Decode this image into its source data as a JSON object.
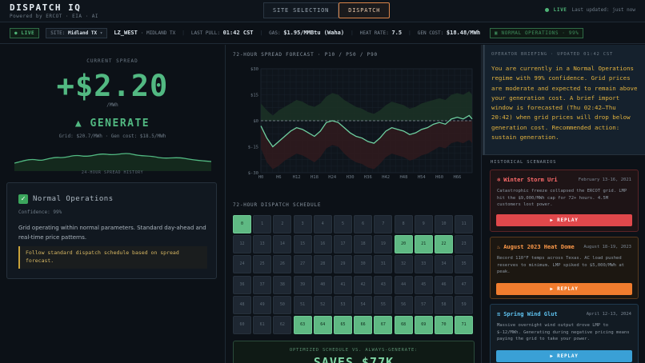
{
  "app": {
    "title": "DISPATCH IQ",
    "subtitle": "Powered by ERCOT · EIA · AI"
  },
  "nav": {
    "tabs": [
      "SITE SELECTION",
      "DISPATCH"
    ],
    "active": "DISPATCH"
  },
  "header_status": {
    "live": "LIVE",
    "last_updated": "Last updated: just now"
  },
  "status_bar": {
    "live_badge": "● LIVE",
    "site_label": "SITE:",
    "site_value": "Midland TX",
    "node": "LZ_WEST",
    "node_location": "· MIDLAND TX",
    "last_pull_label": "LAST PULL:",
    "last_pull_value": "01:42 CST",
    "gas_label": "GAS:",
    "gas_value": "$1.95/MMBtu (Waha)",
    "heat_rate_label": "HEAT RATE:",
    "heat_rate_value": "7.5",
    "gen_cost_label": "GEN COST:",
    "gen_cost_value": "$18.48/MWh",
    "ops_badge": "NORMAL OPERATIONS · 99%"
  },
  "spread": {
    "label": "CURRENT SPREAD",
    "value": "+$2.20",
    "unit": "/MWh",
    "signal": "▲ GENERATE",
    "detail": "Grid: $20.7/MWh · Gen cost: $18.5/MWh",
    "history_label": "24-HOUR SPREAD HISTORY"
  },
  "ops_card": {
    "title": "Normal Operations",
    "confidence": "Confidence: 99%",
    "description": "Grid operating within normal parameters. Standard day-ahead and real-time price patterns.",
    "recommendation": "Follow standard dispatch schedule based on spread forecast."
  },
  "forecast": {
    "title": "72-HOUR SPREAD FORECAST · P10 / P50 / P90",
    "y_ticks": [
      "$30",
      "$15",
      "$0",
      "$-15",
      "$-30"
    ],
    "x_ticks": [
      "H0",
      "H6",
      "H12",
      "H18",
      "H24",
      "H30",
      "H36",
      "H42",
      "H48",
      "H54",
      "H60",
      "H66"
    ]
  },
  "chart_data": {
    "type": "line",
    "xlabel": "",
    "ylabel": "",
    "ylim": [
      -30,
      30
    ],
    "x": [
      0,
      2,
      4,
      6,
      8,
      10,
      12,
      14,
      16,
      18,
      20,
      22,
      24,
      26,
      28,
      30,
      32,
      34,
      36,
      38,
      40,
      42,
      44,
      46,
      48,
      50,
      52,
      54,
      56,
      58,
      60,
      62,
      64,
      66,
      68,
      70,
      71
    ],
    "series": [
      {
        "values": [
          -3,
          -10,
          -15,
          -12,
          -9,
          -6,
          -4,
          -5,
          -7,
          -9,
          -6,
          -1,
          0,
          -1,
          -4,
          -7,
          -9,
          -10,
          -12,
          -13,
          -10,
          -6,
          -4,
          -5,
          -6,
          -8,
          -7,
          -5,
          -4,
          -2,
          -1,
          -2,
          1,
          2,
          1,
          3,
          1
        ]
      },
      {
        "values": [
          10,
          6,
          3,
          6,
          8,
          10,
          12,
          11,
          9,
          8,
          10,
          14,
          16,
          15,
          12,
          10,
          8,
          7,
          5,
          4,
          6,
          9,
          11,
          10,
          9,
          7,
          8,
          10,
          11,
          12,
          13,
          12,
          15,
          16,
          15,
          17,
          15
        ]
      },
      {
        "values": [
          -16,
          -24,
          -28,
          -26,
          -23,
          -21,
          -19,
          -20,
          -22,
          -24,
          -21,
          -16,
          -14,
          -15,
          -19,
          -22,
          -24,
          -25,
          -27,
          -28,
          -25,
          -21,
          -19,
          -20,
          -21,
          -23,
          -22,
          -20,
          -19,
          -17,
          -15,
          -16,
          -13,
          -12,
          -13,
          -11,
          -13
        ]
      }
    ]
  },
  "schedule": {
    "title": "72-HOUR DISPATCH SCHEDULE",
    "hours": [
      0,
      1,
      2,
      3,
      4,
      5,
      6,
      7,
      8,
      9,
      10,
      11,
      12,
      13,
      14,
      15,
      16,
      17,
      18,
      19,
      20,
      21,
      22,
      23,
      24,
      25,
      26,
      27,
      28,
      29,
      30,
      31,
      32,
      33,
      34,
      35,
      36,
      37,
      38,
      39,
      40,
      41,
      42,
      43,
      44,
      45,
      46,
      47,
      48,
      49,
      50,
      51,
      52,
      53,
      54,
      55,
      56,
      57,
      58,
      59,
      60,
      61,
      62,
      63,
      64,
      65,
      66,
      67,
      68,
      69,
      70,
      71
    ],
    "generate_hours": [
      0,
      20,
      21,
      22,
      63,
      64,
      65,
      66,
      67,
      68,
      69,
      70,
      71
    ]
  },
  "savings": {
    "label": "OPTIMIZED SCHEDULE VS. ALWAYS-GENERATE:",
    "value": "SAVES $77K"
  },
  "briefing": {
    "title": "OPERATOR BRIEFING · UPDATED 01:42 CST",
    "text": "You are currently in a Normal Operations regime with 99% confidence. Grid prices are moderate and expected to remain above your generation cost. A brief import window is forecasted (Thu 02:42–Thu 20:42) when grid prices will drop below generation cost. Recommended action: sustain generation."
  },
  "historical": {
    "title": "HISTORICAL SCENARIOS",
    "scenarios": [
      {
        "icon": "snowflake-icon",
        "title": "Winter Storm Uri",
        "date": "February 13-16, 2021",
        "text": "Catastrophic freeze collapsed the ERCOT grid. LMP hit the $9,000/MWh cap for 72+ hours. 4.5M customers lost power.",
        "button": "▶ REPLAY",
        "color": "#e0484b",
        "bg": "#1e1416",
        "border": "#5a2326",
        "title_color": "#ff6b6b"
      },
      {
        "icon": "fire-icon",
        "title": "August 2023 Heat Dome",
        "date": "August 18-19, 2023",
        "text": "Record 110°F temps across Texas. AC load pushed reserves to minimum. LMP spiked to $5,000/MWh at peak.",
        "button": "▶ REPLAY",
        "color": "#f07c2e",
        "bg": "#1c1711",
        "border": "#5a3a1d",
        "title_color": "#ff9a4a"
      },
      {
        "icon": "wind-icon",
        "title": "Spring Wind Glut",
        "date": "April 12-13, 2024",
        "text": "Massive overnight wind output drove LMP to $-12/MWh. Generating during negative pricing means paying the grid to take your power.",
        "button": "▶ REPLAY",
        "color": "#3aa0d6",
        "bg": "#121b23",
        "border": "#1f3a4f",
        "title_color": "#5fc3f0"
      }
    ]
  }
}
